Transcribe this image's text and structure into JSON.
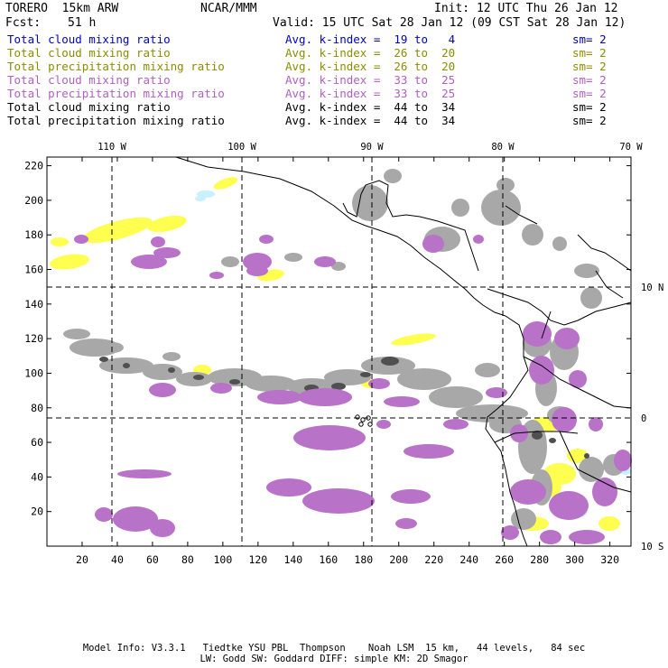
{
  "header": {
    "model": "TORERO  15km ARW",
    "org": "NCAR/MMM",
    "init": "Init: 12 UTC Thu 26 Jan 12",
    "fcst_label": "Fcst:",
    "fcst_value": "51 h",
    "valid": "Valid: 15 UTC Sat 28 Jan 12 (09 CST Sat 28 Jan 12)"
  },
  "legend": [
    {
      "field": "Total cloud mixing ratio",
      "index": "Avg. k-index =  19 to   4",
      "sm": "sm= 2",
      "color": "#0000c8"
    },
    {
      "field": "Total cloud mixing ratio",
      "index": "Avg. k-index =  26 to  20",
      "sm": "sm= 2",
      "color": "#8c8c00"
    },
    {
      "field": "Total precipitation mixing ratio",
      "index": "Avg. k-index =  26 to  20",
      "sm": "sm= 2",
      "color": "#8c8c00"
    },
    {
      "field": "Total cloud mixing ratio",
      "index": "Avg. k-index =  33 to  25",
      "sm": "sm= 2",
      "color": "#b060c0"
    },
    {
      "field": "Total precipitation mixing ratio",
      "index": "Avg. k-index =  33 to  25",
      "sm": "sm= 2",
      "color": "#b060c0"
    },
    {
      "field": "Total cloud mixing ratio",
      "index": "Avg. k-index =  44 to  34",
      "sm": "sm= 2",
      "color": "#000000"
    },
    {
      "field": "Total precipitation mixing ratio",
      "index": "Avg. k-index =  44 to  34",
      "sm": "sm= 2",
      "color": "#000000"
    }
  ],
  "map": {
    "top_labels": [
      "110 W",
      "100 W",
      "90 W",
      "80 W",
      "70 W"
    ],
    "right_labels": [
      "10 N",
      "0",
      "10 S"
    ],
    "x_ticks": [
      "20",
      "40",
      "60",
      "80",
      "100",
      "120",
      "140",
      "160",
      "180",
      "200",
      "220",
      "240",
      "260",
      "280",
      "300",
      "320"
    ],
    "y_ticks": [
      "20",
      "40",
      "60",
      "80",
      "100",
      "120",
      "140",
      "160",
      "180",
      "200",
      "220"
    ],
    "colors": {
      "gray": "#a8a8a8",
      "dark": "#505050",
      "violet": "#b872c8",
      "yellow": "#ffff50",
      "cyan": "#c8f0ff",
      "coast": "#000000"
    }
  },
  "footer": {
    "line1": "Model Info: V3.3.1   Tiedtke YSU PBL  Thompson    Noah LSM  15 km,   44 levels,   84 sec",
    "line2": "LW: Godd SW: Goddard DIFF: simple KM: 2D Smagor"
  }
}
